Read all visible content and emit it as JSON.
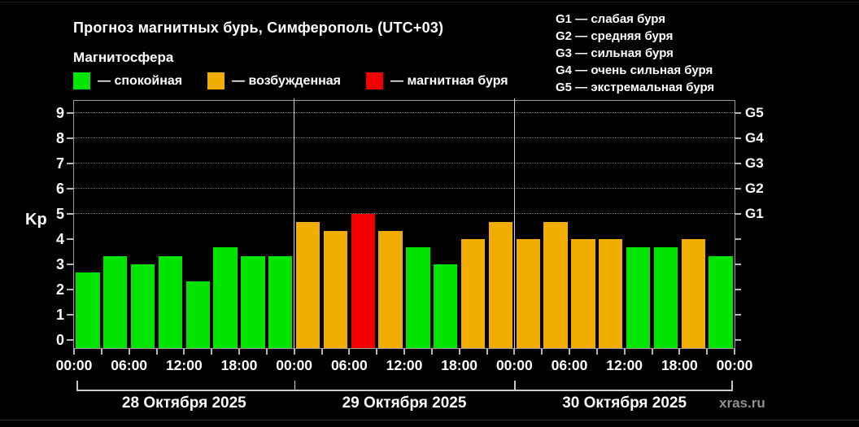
{
  "title": "Прогноз магнитных бурь, Симферополь (UTC+03)",
  "subtitle": "Магнитосфера",
  "legend": {
    "items": [
      {
        "name": "quiet",
        "label": "— спокойная",
        "color": "#00e400"
      },
      {
        "name": "excited",
        "label": "— возбужденная",
        "color": "#f2ae00"
      },
      {
        "name": "storm",
        "label": "— магнитная буря",
        "color": "#f20000"
      }
    ]
  },
  "g_scale_legend": [
    "G1 — слабая буря",
    "G2 — средняя буря",
    "G3 — сильная буря",
    "G4 — очень сильная буря",
    "G5 — экстремальная буря"
  ],
  "watermark": "xras.ru",
  "chart_data": {
    "type": "bar",
    "ylabel": "Kp",
    "ylim": [
      0,
      9
    ],
    "yticks": [
      0,
      1,
      2,
      3,
      4,
      5,
      6,
      7,
      8,
      9
    ],
    "grid_levels_kp": [
      5,
      6,
      7,
      8,
      9
    ],
    "right_axis": [
      {
        "kp": 5,
        "label": "G1"
      },
      {
        "kp": 6,
        "label": "G2"
      },
      {
        "kp": 7,
        "label": "G3"
      },
      {
        "kp": 8,
        "label": "G4"
      },
      {
        "kp": 9,
        "label": "G5"
      }
    ],
    "x_time_labels": [
      "00:00",
      "06:00",
      "12:00",
      "18:00",
      "00:00",
      "06:00",
      "12:00",
      "18:00",
      "00:00",
      "06:00",
      "12:00",
      "18:00",
      "00:00"
    ],
    "interval_hours": 3,
    "days": [
      {
        "date": "28 Октября 2025",
        "values": [
          2.67,
          3.33,
          3.0,
          3.33,
          2.33,
          3.67,
          3.33,
          3.33
        ],
        "status": [
          "quiet",
          "quiet",
          "quiet",
          "quiet",
          "quiet",
          "quiet",
          "quiet",
          "quiet"
        ]
      },
      {
        "date": "29 Октября 2025",
        "values": [
          4.67,
          4.33,
          5.0,
          4.33,
          3.67,
          3.0,
          4.0,
          4.67
        ],
        "status": [
          "excited",
          "excited",
          "storm",
          "excited",
          "quiet",
          "quiet",
          "excited",
          "excited"
        ]
      },
      {
        "date": "30 Октября 2025",
        "values": [
          4.0,
          4.67,
          4.0,
          4.0,
          3.67,
          3.67,
          4.0,
          3.33
        ],
        "status": [
          "excited",
          "excited",
          "excited",
          "excited",
          "quiet",
          "quiet",
          "excited",
          "quiet"
        ]
      }
    ],
    "status_colors": {
      "quiet": "#00e400",
      "excited": "#f2ae00",
      "storm": "#f20000"
    },
    "legend_position": "top",
    "grid": "dotted horizontal at G-levels only"
  }
}
